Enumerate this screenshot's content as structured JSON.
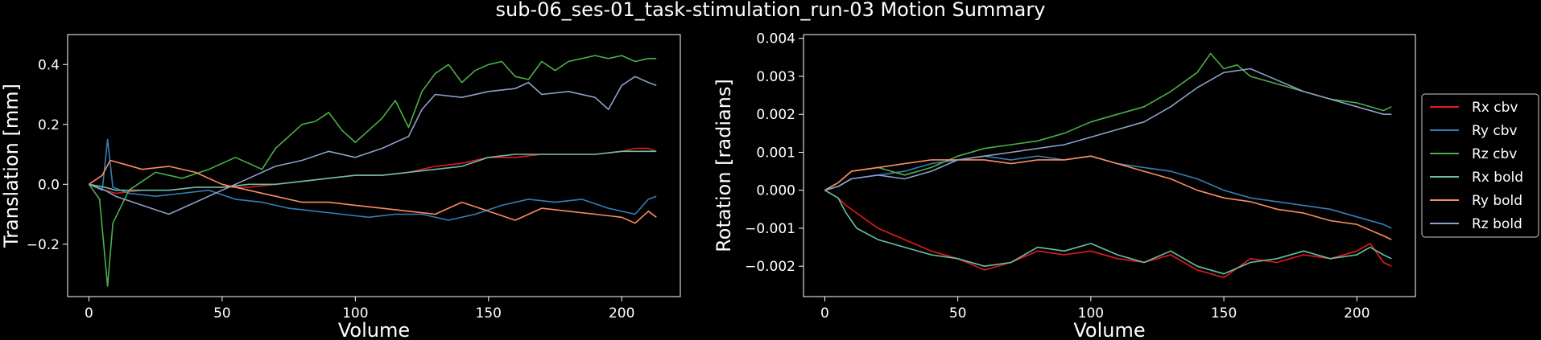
{
  "title": "sub-06_ses-01_task-stimulation_run-03 Motion Summary",
  "colors": {
    "background": "#000000",
    "axes": "#ffffff",
    "Rx cbv": "#e41a1c",
    "Ry cbv": "#377eb8",
    "Rz cbv": "#4daf4a",
    "Rx bold": "#66c2a5",
    "Ry bold": "#fc8d62",
    "Rz bold": "#8da0cb"
  },
  "chart_data": [
    {
      "type": "line",
      "title": "",
      "xlabel": "Volume",
      "ylabel": "Translation [mm]",
      "xlim": [
        -8,
        222
      ],
      "ylim": [
        -0.375,
        0.5
      ],
      "xticks": [
        0,
        50,
        100,
        150,
        200
      ],
      "yticks": [
        -0.2,
        0.0,
        0.2,
        0.4
      ],
      "ytick_labels": [
        "−0.2",
        "0.0",
        "0.2",
        "0.4"
      ],
      "grid": false,
      "legend": "none",
      "series": [
        {
          "name": "",
          "color": "#e41a1c",
          "x": [
            0,
            6,
            10,
            20,
            30,
            40,
            50,
            60,
            70,
            80,
            90,
            100,
            110,
            120,
            130,
            140,
            150,
            160,
            170,
            180,
            190,
            200,
            205,
            210,
            213
          ],
          "values": [
            0.0,
            -0.02,
            -0.03,
            -0.02,
            -0.02,
            -0.01,
            -0.01,
            -0.01,
            0.0,
            0.01,
            0.02,
            0.03,
            0.03,
            0.04,
            0.06,
            0.07,
            0.09,
            0.09,
            0.1,
            0.1,
            0.1,
            0.11,
            0.12,
            0.12,
            0.11
          ]
        },
        {
          "name": "",
          "color": "#377eb8",
          "x": [
            0,
            5,
            7,
            9,
            15,
            25,
            35,
            45,
            55,
            65,
            75,
            85,
            95,
            105,
            115,
            125,
            135,
            145,
            155,
            165,
            175,
            185,
            195,
            205,
            210,
            213
          ],
          "values": [
            0.0,
            -0.02,
            0.15,
            -0.01,
            -0.03,
            -0.04,
            -0.03,
            -0.02,
            -0.05,
            -0.06,
            -0.08,
            -0.09,
            -0.1,
            -0.11,
            -0.1,
            -0.1,
            -0.12,
            -0.1,
            -0.07,
            -0.05,
            -0.06,
            -0.05,
            -0.08,
            -0.1,
            -0.05,
            -0.04
          ]
        },
        {
          "name": "",
          "color": "#4daf4a",
          "x": [
            0,
            4,
            7,
            9,
            15,
            25,
            35,
            45,
            55,
            65,
            70,
            80,
            85,
            90,
            95,
            100,
            105,
            110,
            115,
            120,
            125,
            130,
            135,
            140,
            145,
            150,
            155,
            160,
            165,
            170,
            175,
            180,
            185,
            190,
            195,
            200,
            205,
            210,
            213
          ],
          "values": [
            0.0,
            -0.05,
            -0.34,
            -0.13,
            -0.02,
            0.04,
            0.02,
            0.05,
            0.09,
            0.05,
            0.12,
            0.2,
            0.21,
            0.24,
            0.18,
            0.14,
            0.18,
            0.22,
            0.28,
            0.19,
            0.31,
            0.37,
            0.4,
            0.34,
            0.38,
            0.4,
            0.41,
            0.36,
            0.35,
            0.41,
            0.38,
            0.41,
            0.42,
            0.43,
            0.42,
            0.43,
            0.41,
            0.42,
            0.42
          ]
        },
        {
          "name": "",
          "color": "#66c2a5",
          "x": [
            0,
            6,
            10,
            20,
            30,
            40,
            50,
            60,
            70,
            80,
            90,
            100,
            110,
            120,
            130,
            140,
            150,
            160,
            170,
            180,
            190,
            200,
            210,
            213
          ],
          "values": [
            0.0,
            -0.01,
            -0.02,
            -0.02,
            -0.02,
            -0.01,
            -0.01,
            0.0,
            0.0,
            0.01,
            0.02,
            0.03,
            0.03,
            0.04,
            0.05,
            0.06,
            0.09,
            0.1,
            0.1,
            0.1,
            0.1,
            0.11,
            0.11,
            0.11
          ]
        },
        {
          "name": "",
          "color": "#fc8d62",
          "x": [
            0,
            5,
            8,
            12,
            20,
            30,
            40,
            50,
            60,
            70,
            80,
            90,
            100,
            110,
            120,
            130,
            140,
            150,
            160,
            170,
            180,
            190,
            200,
            205,
            210,
            213
          ],
          "values": [
            0.0,
            0.03,
            0.08,
            0.07,
            0.05,
            0.06,
            0.04,
            0.0,
            -0.02,
            -0.04,
            -0.06,
            -0.06,
            -0.07,
            -0.08,
            -0.09,
            -0.1,
            -0.06,
            -0.09,
            -0.12,
            -0.08,
            -0.09,
            -0.1,
            -0.11,
            -0.13,
            -0.09,
            -0.11
          ]
        },
        {
          "name": "",
          "color": "#8da0cb",
          "x": [
            0,
            6,
            10,
            20,
            30,
            40,
            50,
            60,
            70,
            80,
            90,
            100,
            110,
            115,
            120,
            125,
            130,
            140,
            150,
            160,
            165,
            170,
            180,
            190,
            195,
            200,
            205,
            210,
            213
          ],
          "values": [
            0.0,
            -0.02,
            -0.04,
            -0.07,
            -0.1,
            -0.06,
            -0.02,
            0.02,
            0.06,
            0.08,
            0.11,
            0.09,
            0.12,
            0.14,
            0.16,
            0.25,
            0.3,
            0.29,
            0.31,
            0.32,
            0.34,
            0.3,
            0.31,
            0.29,
            0.25,
            0.33,
            0.36,
            0.34,
            0.33
          ]
        }
      ]
    },
    {
      "type": "line",
      "title": "",
      "xlabel": "Volume",
      "ylabel": "Rotation [radians]",
      "xlim": [
        -8,
        222
      ],
      "ylim": [
        -0.0028,
        0.0041
      ],
      "xticks": [
        0,
        50,
        100,
        150,
        200
      ],
      "yticks": [
        -0.002,
        -0.001,
        0.0,
        0.001,
        0.002,
        0.003,
        0.004
      ],
      "ytick_labels": [
        "−0.002",
        "−0.001",
        "0.000",
        "0.001",
        "0.002",
        "0.003",
        "0.004"
      ],
      "grid": false,
      "legend": "right, outside plot",
      "series": [
        {
          "name": "Rx cbv",
          "color": "#e41a1c",
          "x": [
            0,
            5,
            8,
            12,
            20,
            30,
            40,
            50,
            60,
            70,
            80,
            90,
            100,
            110,
            120,
            130,
            140,
            150,
            160,
            170,
            180,
            190,
            200,
            205,
            210,
            213
          ],
          "values": [
            0.0,
            -0.0002,
            -0.0004,
            -0.0006,
            -0.001,
            -0.0013,
            -0.0016,
            -0.0018,
            -0.0021,
            -0.0019,
            -0.0016,
            -0.0017,
            -0.0016,
            -0.0018,
            -0.0019,
            -0.0017,
            -0.0021,
            -0.0023,
            -0.0018,
            -0.0019,
            -0.0017,
            -0.0018,
            -0.0016,
            -0.0014,
            -0.0019,
            -0.002
          ]
        },
        {
          "name": "Ry cbv",
          "color": "#377eb8",
          "x": [
            0,
            5,
            10,
            20,
            30,
            40,
            50,
            60,
            70,
            80,
            90,
            100,
            110,
            120,
            130,
            140,
            150,
            160,
            170,
            180,
            190,
            200,
            210,
            213
          ],
          "values": [
            0.0,
            0.0001,
            0.0003,
            0.0004,
            0.0005,
            0.0007,
            0.0008,
            0.0009,
            0.0008,
            0.0009,
            0.0008,
            0.0009,
            0.0007,
            0.0006,
            0.0005,
            0.0003,
            0.0,
            -0.0002,
            -0.0003,
            -0.0004,
            -0.0005,
            -0.0007,
            -0.0009,
            -0.001
          ]
        },
        {
          "name": "Rz cbv",
          "color": "#4daf4a",
          "x": [
            0,
            5,
            10,
            20,
            30,
            40,
            50,
            60,
            70,
            80,
            90,
            100,
            110,
            120,
            130,
            140,
            145,
            150,
            155,
            160,
            170,
            180,
            190,
            200,
            210,
            213
          ],
          "values": [
            0.0,
            0.0002,
            0.0005,
            0.0006,
            0.0004,
            0.0006,
            0.0009,
            0.0011,
            0.0012,
            0.0013,
            0.0015,
            0.0018,
            0.002,
            0.0022,
            0.0026,
            0.0031,
            0.0036,
            0.0032,
            0.0033,
            0.003,
            0.0028,
            0.0026,
            0.0024,
            0.0023,
            0.0021,
            0.0022
          ]
        },
        {
          "name": "Rx bold",
          "color": "#66c2a5",
          "x": [
            0,
            5,
            8,
            12,
            20,
            30,
            40,
            50,
            60,
            70,
            80,
            90,
            100,
            110,
            120,
            130,
            140,
            150,
            160,
            170,
            180,
            190,
            200,
            205,
            210,
            213
          ],
          "values": [
            0.0,
            -0.0002,
            -0.0006,
            -0.001,
            -0.0013,
            -0.0015,
            -0.0017,
            -0.0018,
            -0.002,
            -0.0019,
            -0.0015,
            -0.0016,
            -0.0014,
            -0.0017,
            -0.0019,
            -0.0016,
            -0.002,
            -0.0022,
            -0.0019,
            -0.0018,
            -0.0016,
            -0.0018,
            -0.0017,
            -0.0015,
            -0.0017,
            -0.0018
          ]
        },
        {
          "name": "Ry bold",
          "color": "#fc8d62",
          "x": [
            0,
            5,
            10,
            20,
            30,
            40,
            50,
            60,
            70,
            80,
            90,
            100,
            110,
            120,
            130,
            140,
            150,
            160,
            170,
            180,
            190,
            200,
            210,
            213
          ],
          "values": [
            0.0,
            0.0002,
            0.0005,
            0.0006,
            0.0007,
            0.0008,
            0.0008,
            0.0008,
            0.0007,
            0.0008,
            0.0008,
            0.0009,
            0.0007,
            0.0005,
            0.0003,
            0.0,
            -0.0002,
            -0.0003,
            -0.0005,
            -0.0006,
            -0.0008,
            -0.0009,
            -0.0012,
            -0.0013
          ]
        },
        {
          "name": "Rz bold",
          "color": "#8da0cb",
          "x": [
            0,
            5,
            10,
            20,
            30,
            40,
            50,
            60,
            70,
            80,
            90,
            100,
            110,
            120,
            130,
            140,
            150,
            160,
            170,
            180,
            190,
            200,
            210,
            213
          ],
          "values": [
            0.0,
            0.0001,
            0.0003,
            0.0004,
            0.0003,
            0.0005,
            0.0008,
            0.0009,
            0.001,
            0.0011,
            0.0012,
            0.0014,
            0.0016,
            0.0018,
            0.0022,
            0.0027,
            0.0031,
            0.0032,
            0.0029,
            0.0026,
            0.0024,
            0.0022,
            0.002,
            0.002
          ]
        }
      ]
    }
  ]
}
